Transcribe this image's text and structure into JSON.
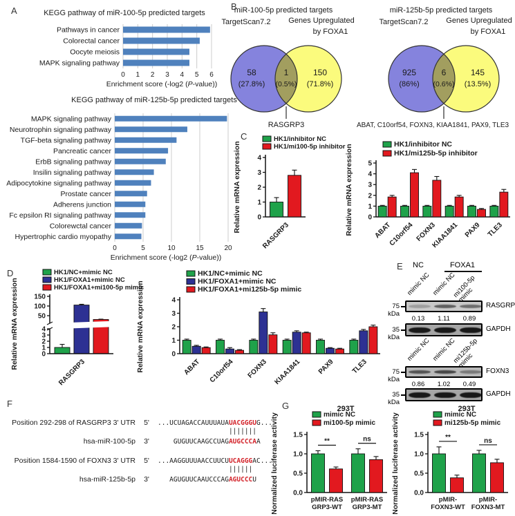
{
  "figure": {
    "panel_labels": [
      "A",
      "B",
      "C",
      "D",
      "E",
      "F",
      "G"
    ]
  },
  "colors": {
    "kegg_bar": "#4f81bd",
    "grid": "#cccccc",
    "green": "#1fa24a",
    "red": "#e2191f",
    "navy": "#2d3193",
    "venn_left": "#8583dd",
    "venn_right": "#fbfb7d",
    "venn_overlap": "#a29e5f",
    "seq_red": "#d3232a",
    "text": "#1a1a1a"
  },
  "chart_data": [
    {
      "id": "kegg_mir100",
      "type": "bar",
      "orientation": "horizontal",
      "title": "KEGG pathway of miR-100-5p predicted targets",
      "categories": [
        "Pathways in cancer",
        "Colorectal cancer",
        "Oocyte meiosis",
        "MAPK signaling pathway"
      ],
      "values": [
        5.9,
        5.2,
        4.5,
        4.5
      ],
      "xlabel_parts": [
        "Enrichment score (-log2 (",
        "P",
        "-value))"
      ],
      "xlim": [
        0,
        6
      ],
      "xticks": [
        0,
        1,
        2,
        3,
        4,
        5,
        6
      ]
    },
    {
      "id": "kegg_mir125",
      "type": "bar",
      "orientation": "horizontal",
      "title": "KEGG pathway of miR-125b-5p predicted targets",
      "categories": [
        "MAPK signaling pathway",
        "Neurotrophin signaling pathway",
        "TGF-beta signaling pathway",
        "Pancreatic cancer",
        "ErbB signaling pathway",
        "Insilin signaling pathway",
        "Adipocytokine signaling pathway",
        "Prostate cancer",
        "Adherens junction",
        "Fc epsilon RI signaling pathway",
        "Colorewctal cancer",
        "Hypertrophic cardio myopathy"
      ],
      "values": [
        19.8,
        12.8,
        10.9,
        9.4,
        9.0,
        6.9,
        6.4,
        5.7,
        5.4,
        5.4,
        4.8,
        4.7
      ],
      "xlabel_parts": [
        "Enrichment score (-log2 (",
        "P",
        "-value))"
      ],
      "xlim": [
        0,
        20
      ],
      "xticks": [
        0,
        5,
        10,
        15,
        20
      ]
    },
    {
      "id": "c_rasgrp3",
      "type": "bar",
      "ylabel": "Relative mRNA expression",
      "ylim": [
        0,
        4
      ],
      "yticks": [
        0,
        1,
        2,
        3,
        4
      ],
      "ytick_labels": [
        "0",
        "1",
        "2",
        "3",
        "4"
      ],
      "categories": [
        "RASGRP3"
      ],
      "series": [
        {
          "name": "HK1/inhibitor NC",
          "color": "green",
          "values": [
            1.0
          ],
          "errors": [
            0.3
          ]
        },
        {
          "name": "HK1/mi100-5p inhibitor",
          "color": "red",
          "values": [
            2.8
          ],
          "errors": [
            0.35
          ]
        }
      ]
    },
    {
      "id": "c_targets",
      "type": "bar",
      "ylabel": "Relative mRNA expression",
      "ylim": [
        0,
        5
      ],
      "yticks": [
        0,
        1,
        2,
        3,
        4,
        5
      ],
      "ytick_labels": [
        "0",
        "1",
        "2",
        "3",
        "4",
        "5"
      ],
      "categories": [
        "ABAT",
        "C10orf54",
        "FOXN3",
        "KIAA1841",
        "PAX9",
        "TLE3"
      ],
      "series": [
        {
          "name": "HK1/inhibitor NC",
          "color": "green",
          "values": [
            1.0,
            1.0,
            1.0,
            1.0,
            1.0,
            1.0
          ],
          "errors": [
            0.07,
            0.07,
            0.07,
            0.07,
            0.07,
            0.07
          ]
        },
        {
          "name": "HK1/mi125b-5p inhibitor",
          "color": "red",
          "values": [
            1.85,
            4.1,
            3.4,
            1.85,
            0.7,
            2.3
          ],
          "errors": [
            0.15,
            0.3,
            0.35,
            0.15,
            0.08,
            0.25
          ]
        }
      ]
    },
    {
      "id": "d_rasgrp3",
      "type": "bar_broken",
      "ylabel": "Relative mRNA expression",
      "yticks_lower": [
        0,
        1,
        2,
        3,
        4
      ],
      "ytick_labels_lower": [
        "0",
        "1",
        "2",
        "3",
        "4"
      ],
      "yticks_upper": [
        50,
        100,
        150
      ],
      "ytick_labels_upper": [
        "50",
        "100",
        "150"
      ],
      "categories": [
        "RASGRP3"
      ],
      "series": [
        {
          "name": "HK1/NC+mimic NC",
          "color": "green",
          "values": [
            1.0
          ],
          "errors": [
            0.5
          ]
        },
        {
          "name": "HK1/FOXA1+mimic NC",
          "color": "navy",
          "values": [
            105
          ],
          "errors": [
            4
          ]
        },
        {
          "name": "HK1/FOXA1+mi100-5p mimic",
          "color": "red",
          "values": [
            27
          ],
          "errors": [
            2
          ]
        }
      ]
    },
    {
      "id": "d_targets",
      "type": "bar",
      "ylabel": "Relative mRNA expression",
      "ylim": [
        0,
        4
      ],
      "yticks": [
        0,
        1,
        2,
        3,
        4
      ],
      "ytick_labels": [
        "0",
        "1",
        "2",
        "3",
        "4"
      ],
      "categories": [
        "ABAT",
        "C10orf54",
        "FOXN3",
        "KIAA1841",
        "PAX9",
        "TLE3"
      ],
      "series": [
        {
          "name": "HK1/NC+mimic NC",
          "color": "green",
          "values": [
            1.0,
            1.0,
            1.0,
            1.0,
            1.0,
            1.0
          ],
          "errors": [
            0.08,
            0.08,
            0.08,
            0.08,
            0.08,
            0.08
          ]
        },
        {
          "name": "HK1/FOXA1+mimic NC",
          "color": "navy",
          "values": [
            0.55,
            0.35,
            3.1,
            1.6,
            0.4,
            1.7
          ],
          "errors": [
            0.07,
            0.1,
            0.25,
            0.1,
            0.05,
            0.1
          ]
        },
        {
          "name": "HK1/FOXA1+mi125b-5p mimic",
          "color": "red",
          "values": [
            0.45,
            0.25,
            1.4,
            1.55,
            0.35,
            2.0
          ],
          "errors": [
            0.05,
            0.05,
            0.15,
            0.05,
            0.05,
            0.12
          ]
        }
      ]
    },
    {
      "id": "g_rasgrp3",
      "type": "bar",
      "title": "293T",
      "ylabel": "Normalized luciferase activity",
      "ylim": [
        0,
        1.5
      ],
      "yticks": [
        0,
        0.5,
        1,
        1.5
      ],
      "ytick_labels": [
        "0.0",
        "0.5",
        "1.0",
        "1.5"
      ],
      "categories": [
        [
          "pMIR-RAS",
          "GRP3-WT"
        ],
        [
          "pMIR-RAS",
          "GRP3-MT"
        ]
      ],
      "sig": [
        "**",
        "ns"
      ],
      "series": [
        {
          "name": "mimic NC",
          "color": "green",
          "values": [
            1.0,
            1.0
          ],
          "errors": [
            0.08,
            0.13
          ]
        },
        {
          "name": "mi100-5p mimic",
          "color": "red",
          "values": [
            0.61,
            0.85
          ],
          "errors": [
            0.05,
            0.08
          ]
        }
      ]
    },
    {
      "id": "g_foxn3",
      "type": "bar",
      "title": "293T",
      "ylabel": "Normalized luciferase activity",
      "ylim": [
        0,
        1.5
      ],
      "yticks": [
        0,
        0.5,
        1,
        1.5
      ],
      "ytick_labels": [
        "0.0",
        "0.5",
        "1.0",
        "1.5"
      ],
      "categories": [
        [
          "pMIR-",
          "FOXN3-WT"
        ],
        [
          "pMIR-",
          "FOXN3-MT"
        ]
      ],
      "sig": [
        "**",
        "ns"
      ],
      "series": [
        {
          "name": "mimic NC",
          "color": "green",
          "values": [
            1.0,
            1.0
          ],
          "errors": [
            0.18,
            0.09
          ]
        },
        {
          "name": "mi125b-5p mimic",
          "color": "red",
          "values": [
            0.38,
            0.77
          ],
          "errors": [
            0.07,
            0.09
          ]
        }
      ]
    }
  ],
  "venn": {
    "diagrams": [
      {
        "title": "miR-100-5p predicted targets",
        "left_label": "TargetScan7.2",
        "right_label_line1": "Genes Upregulated",
        "right_label_line2": "by FOXA1",
        "left_count": "58",
        "left_pct": "(27.8%)",
        "overlap_count": "1",
        "overlap_pct": "(0.5%)",
        "right_count": "150",
        "right_pct": "(71.8%)",
        "callout": "RASGRP3"
      },
      {
        "title": "miR-125b-5p predicted targets",
        "left_label": "TargetScan7.2",
        "right_label_line1": "Genes Upregulated",
        "right_label_line2": "by FOXA1",
        "left_count": "925",
        "left_pct": "(86%)",
        "overlap_count": "6",
        "overlap_pct": "(0.6%)",
        "right_count": "145",
        "right_pct": "(13.5%)",
        "callout": "ABAT, C10orf54, FOXN3, KIAA1841, PAX9, TLE3"
      }
    ]
  },
  "western": {
    "group_headers": {
      "nc": "NC",
      "foxa1": "FOXA1"
    },
    "sets": [
      {
        "lanes": [
          [
            "mimic NC"
          ],
          [
            "mimic NC"
          ],
          [
            "mi100-5p",
            "mimic"
          ]
        ],
        "blots": [
          {
            "marker": "75 kDa",
            "protein": "RASGRP3",
            "values": [
              "0.13",
              "1.11",
              "0.89"
            ],
            "band_intensities": [
              0.3,
              0.75,
              0.65
            ],
            "bg": "#c9c9c9"
          },
          {
            "marker": "35 kDa",
            "protein": "GAPDH",
            "values": [],
            "band_intensities": [
              0.95,
              0.95,
              0.95
            ],
            "bg": "#a6a6a6"
          }
        ]
      },
      {
        "lanes": [
          [
            "mimic NC"
          ],
          [
            "mimic NC"
          ],
          [
            "mi125b-5p",
            "mimic"
          ]
        ],
        "blots": [
          {
            "marker": "75 kDa",
            "protein": "FOXN3",
            "values": [
              "0.86",
              "1.02",
              "0.49"
            ],
            "band_intensities": [
              0.8,
              0.9,
              0.5
            ],
            "bg": "#b9b9b9"
          },
          {
            "marker": "35 kDa",
            "protein": "GAPDH",
            "values": [],
            "band_intensities": [
              0.95,
              0.95,
              0.95
            ],
            "bg": "#a6a6a6"
          }
        ]
      }
    ]
  },
  "alignment": {
    "rows": [
      {
        "type": "seq",
        "label": "Position 292-298 of RASGRP3 3' UTR",
        "end": "5'",
        "pre": "...UCUAGACCAUUUAUA",
        "match": "UACGGGU",
        "post": "G..."
      },
      {
        "type": "bars",
        "text": "                  |||||||"
      },
      {
        "type": "seq",
        "label": "hsa-miR-100-5p",
        "end": "3'",
        "pre": "    GUGUUCAAGCCUAG",
        "match": "AUGCCCA",
        "post": "A"
      },
      {
        "type": "seq",
        "label": "Position 1584-1590 of FOXN3 3' UTR",
        "end": "5'",
        "pre": "...AAGGUUUAACCUUCU",
        "match": "UCAGGG",
        "post": "AC..."
      },
      {
        "type": "bars",
        "text": "                  ||||||"
      },
      {
        "type": "seq",
        "label": "hsa-miR-125b-5p",
        "end": "3'",
        "pre": "   AGUGUUCAAUCCCAG",
        "match": "AGUCCC",
        "post": "U"
      }
    ]
  }
}
